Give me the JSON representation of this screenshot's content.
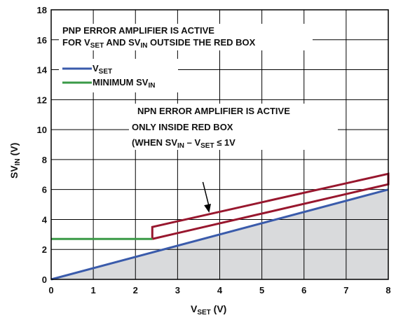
{
  "chart_data": {
    "type": "line",
    "xlabel": {
      "main": "V",
      "sub": "SET",
      "tail": " (V)"
    },
    "ylabel": {
      "main": "SV",
      "sub": "IN",
      "tail": " (V)"
    },
    "xlim": [
      0,
      8
    ],
    "ylim": [
      0,
      18
    ],
    "xticks": [
      0,
      1,
      2,
      3,
      4,
      5,
      6,
      7,
      8
    ],
    "yticks": [
      0,
      2,
      4,
      6,
      8,
      10,
      12,
      14,
      16,
      18
    ],
    "grid": true,
    "legend_position": "upper-left",
    "series": [
      {
        "name": "V_SET",
        "color": "#3a5bab",
        "points": [
          [
            0,
            0
          ],
          [
            8,
            6
          ]
        ]
      },
      {
        "name": "MINIMUM SV_IN",
        "color": "#3a9a47",
        "points": [
          [
            0,
            2.7
          ],
          [
            2.4,
            2.7
          ]
        ]
      }
    ],
    "shaded_region": {
      "color": "#d9dadc",
      "points": [
        [
          0,
          0
        ],
        [
          8,
          6
        ],
        [
          8,
          0
        ]
      ]
    },
    "red_box": {
      "color": "#98172e",
      "points": [
        [
          2.4,
          2.7
        ],
        [
          2.4,
          3.5
        ],
        [
          8,
          7.05
        ],
        [
          8,
          6.35
        ],
        [
          2.4,
          2.7
        ]
      ]
    },
    "legend": [
      {
        "main": "V",
        "sub": "SET",
        "color": "#3a5bab"
      },
      {
        "main": "MINIMUM SV",
        "sub": "IN",
        "color": "#3a9a47"
      }
    ],
    "annotations": {
      "pnp": {
        "line1": "PNP ERROR AMPLIFIER IS ACTIVE",
        "line2": [
          {
            "t": "FOR V"
          },
          {
            "t": "SET",
            "sub": true
          },
          {
            "t": " AND SV"
          },
          {
            "t": "IN",
            "sub": true
          },
          {
            "t": " OUTSIDE THE RED BOX"
          }
        ]
      },
      "npn": {
        "line1": "NPN ERROR AMPLIFIER IS ACTIVE",
        "line2": "ONLY INSIDE RED BOX",
        "line3": [
          {
            "t": "(WHEN SV"
          },
          {
            "t": "IN",
            "sub": true
          },
          {
            "t": " – V"
          },
          {
            "t": "SET",
            "sub": true
          },
          {
            "t": " ≤ 1V"
          }
        ]
      }
    },
    "arrow": {
      "from": [
        3.6,
        6.5
      ],
      "to": [
        3.75,
        4.45
      ]
    }
  }
}
